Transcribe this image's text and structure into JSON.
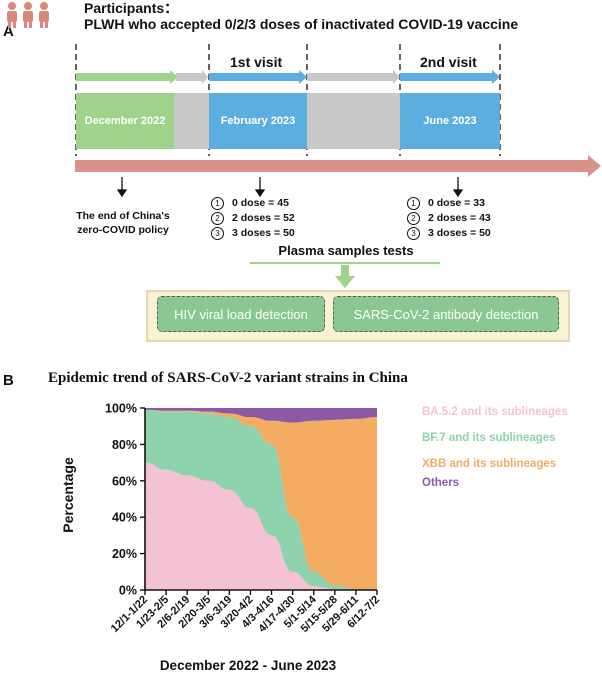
{
  "panel_a": {
    "letter": "A",
    "participants_label": "Participants：",
    "participants_desc": "PLWH who accepted 0/2/3 doses of inactivated COVID-19 vaccine",
    "visit1_label": "1st visit",
    "visit2_label": "2nd visit",
    "periods": [
      "December 2022",
      "February 2023",
      "June 2023"
    ],
    "policy_text_line1": "The end of China's",
    "policy_text_line2": "zero-COVID policy",
    "visit1_doses": [
      {
        "marker": "1",
        "text": "0 dose = 45"
      },
      {
        "marker": "2",
        "text": "2 doses = 52"
      },
      {
        "marker": "3",
        "text": "3 doses = 50"
      }
    ],
    "visit2_doses": [
      {
        "marker": "1",
        "text": "0 dose = 33"
      },
      {
        "marker": "2",
        "text": "2 doses = 43"
      },
      {
        "marker": "3",
        "text": "3 doses = 50"
      }
    ],
    "tests_title": "Plasma samples tests",
    "detections": [
      "HIV viral load detection",
      "SARS-CoV-2 antibody detection"
    ],
    "colors": {
      "green": "#9dd38a",
      "blue": "#5aaee0",
      "gray": "#c8c8c8",
      "timeline": "#d9938a",
      "person": "#d88a7a"
    }
  },
  "panel_b": {
    "letter": "B",
    "chart_data": {
      "type": "area",
      "title": "Epidemic trend of SARS-CoV-2 variant strains in China",
      "xlabel": "December 2022 - June 2023",
      "ylabel": "Percentage",
      "ylim": [
        0,
        100
      ],
      "yticks": [
        "0%",
        "20%",
        "40%",
        "60%",
        "80%",
        "100%"
      ],
      "categories": [
        "12/1-1/22",
        "1/23-2/5",
        "2/6-2/19",
        "2/20-3/5",
        "3/6-3/19",
        "3/20-4/2",
        "4/3-4/16",
        "4/17-4/30",
        "5/1-5/14",
        "5/15-5/28",
        "5/29-6/11",
        "6/12-7/2"
      ],
      "stacked": true,
      "series": [
        {
          "name": "BA.5.2 and its sublineages",
          "color": "#f4c2d4",
          "values": [
            70,
            66,
            63,
            60,
            55,
            45,
            30,
            10,
            2,
            0.5,
            0,
            0
          ]
        },
        {
          "name": "BF.7 and its sublineages",
          "color": "#8fd3ae",
          "values": [
            29,
            32,
            35,
            37,
            40,
            45,
            50,
            30,
            8,
            2,
            0.5,
            0
          ]
        },
        {
          "name": "XBB and its sublineages",
          "color": "#f4ab62",
          "values": [
            0,
            0.5,
            0.5,
            1,
            2,
            5,
            13,
            52,
            83,
            91,
            93.5,
            95
          ]
        },
        {
          "name": "Others",
          "color": "#8c5aa5",
          "values": [
            1,
            1.5,
            1.5,
            2,
            3,
            5,
            7,
            8,
            7,
            6.5,
            6,
            5
          ]
        }
      ],
      "legend": "right",
      "grid": false
    }
  }
}
